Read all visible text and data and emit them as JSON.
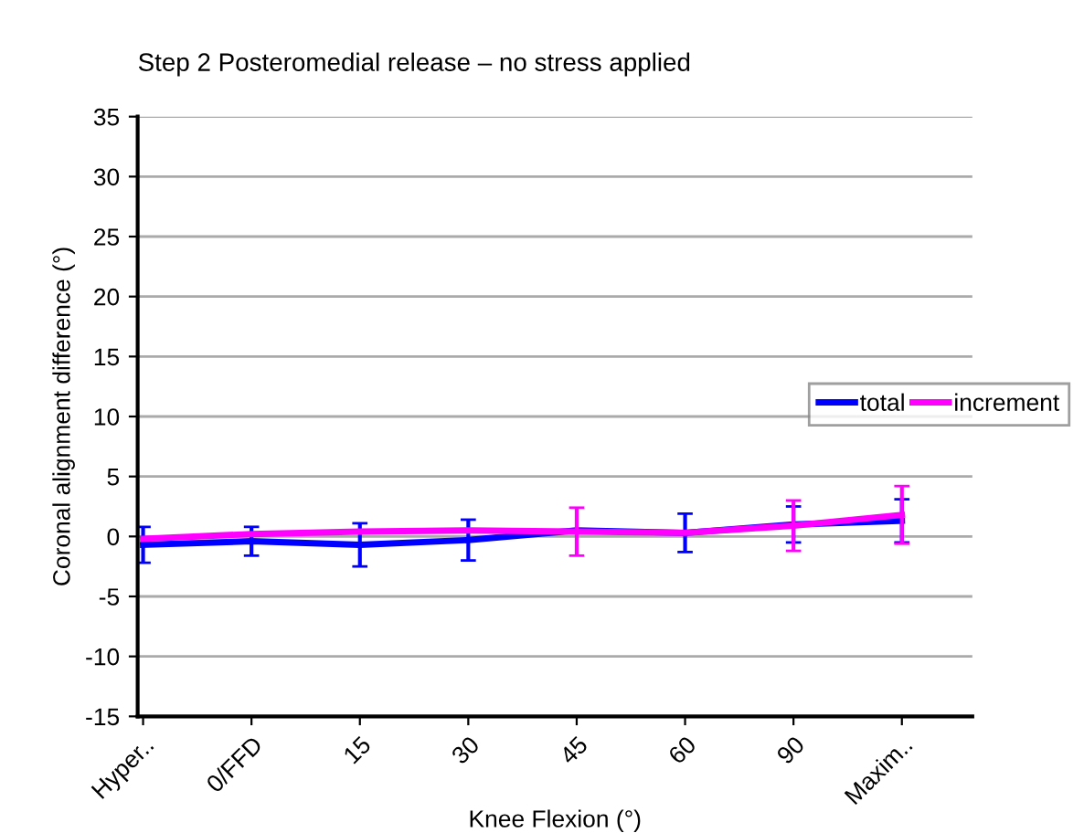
{
  "chart_data": {
    "type": "line",
    "title": "Step 2 Posteromedial release – no stress applied",
    "xlabel": "Knee Flexion (°)",
    "ylabel": "Coronal alignment difference (°)",
    "categories": [
      "Hyper..",
      "0/FFD",
      "15",
      "30",
      "45",
      "60",
      "90",
      "Maxim.."
    ],
    "series": [
      {
        "name": "total",
        "color": "#0000ff",
        "values": [
          -0.7,
          -0.4,
          -0.7,
          -0.3,
          0.5,
          0.3,
          1.0,
          1.3
        ],
        "errors": [
          1.5,
          1.2,
          1.8,
          1.7,
          null,
          1.6,
          1.5,
          1.8
        ]
      },
      {
        "name": "increment",
        "color": "#ff00ff",
        "values": [
          -0.2,
          0.2,
          0.4,
          0.5,
          0.4,
          0.3,
          0.9,
          1.8
        ],
        "errors": [
          null,
          null,
          null,
          null,
          2.0,
          null,
          2.1,
          2.4
        ]
      }
    ],
    "ylim": [
      -15,
      35
    ],
    "yticks": [
      -15,
      -10,
      -5,
      0,
      5,
      10,
      15,
      20,
      25,
      30,
      35
    ],
    "grid": "y",
    "legend": "right",
    "marker": "none"
  }
}
